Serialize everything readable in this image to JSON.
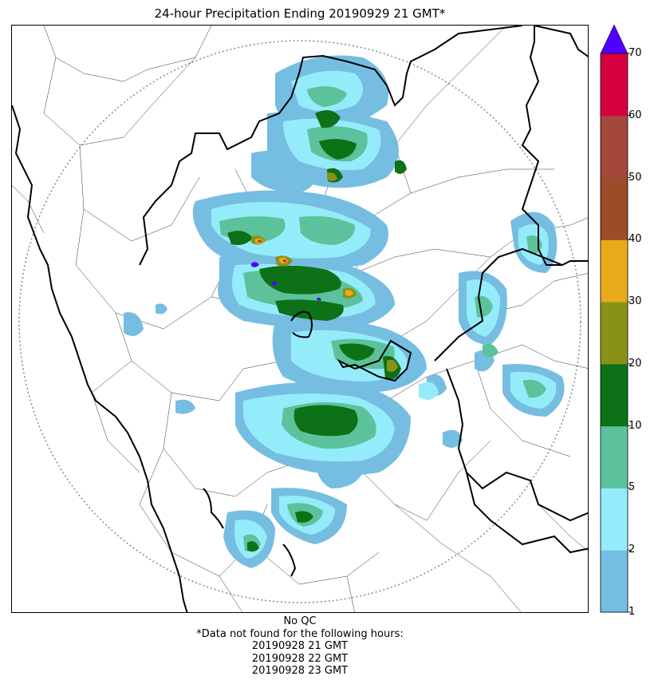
{
  "title": "24-hour Precipitation Ending 20190929 21 GMT*",
  "colorbar": {
    "ticks": [
      "1",
      "2",
      "5",
      "10",
      "20",
      "30",
      "40",
      "50",
      "60",
      "70"
    ],
    "colors": [
      "#76bde2",
      "#94ecfa",
      "#5cc29b",
      "#0d7118",
      "#8a9118",
      "#e7ab1a",
      "#9a4d27",
      "#a5483c",
      "#d60041"
    ],
    "extend_color": "#5000ff"
  },
  "footer": {
    "qc": "No QC",
    "note": "*Data not found for the following hours:",
    "hours": [
      "20190928 21 GMT",
      "20190928 22 GMT",
      "20190928 23 GMT"
    ]
  }
}
